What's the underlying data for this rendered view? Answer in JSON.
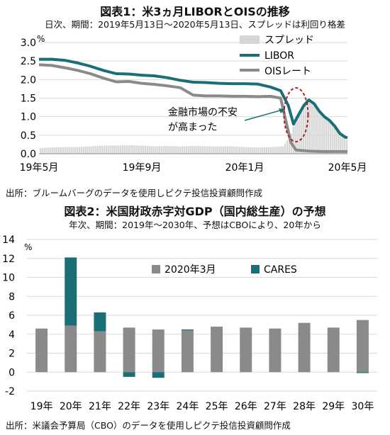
{
  "chart_data": [
    {
      "type": "line",
      "title": "図表1：米3ヵ月LIBORとOISの推移",
      "subtitle": "日次、期間：2019年5月13日～2020年5月13日、スプレッドは利回り格差",
      "source": "出所：ブルームバーグのデータを使用しピクテ投信投資顧問作成",
      "unit": "%",
      "ylim": [
        0.0,
        3.0
      ],
      "yticks": [
        "3.0",
        "2.5",
        "2.0",
        "1.5",
        "1.0",
        "0.5",
        "0.0"
      ],
      "xticks": [
        "19年5月",
        "19年9月",
        "20年1月",
        "20年5月"
      ],
      "xtick_positions": [
        0,
        4,
        8,
        12
      ],
      "xlim": [
        0,
        12
      ],
      "grid": true,
      "legend": "top-right",
      "annotation": [
        "金融市場の不安",
        "が高まった"
      ],
      "colors": {
        "spread": "#d6d6d6",
        "libor": "#1a6e76",
        "ois": "#8a8a8a",
        "annotation": "#1a6e76",
        "highlight": "#b01f24"
      },
      "series": [
        {
          "name": "スプレッド",
          "kind": "bar",
          "x": [
            0,
            0.5,
            1,
            1.5,
            2,
            2.5,
            3,
            3.5,
            4,
            4.5,
            5,
            5.5,
            6,
            6.5,
            7,
            7.5,
            8,
            8.5,
            9,
            9.5,
            9.8,
            10,
            10.3,
            10.6,
            10.8,
            11,
            11.3,
            11.6,
            11.8,
            12
          ],
          "values": [
            0.15,
            0.17,
            0.18,
            0.18,
            0.2,
            0.22,
            0.22,
            0.23,
            0.22,
            0.2,
            0.21,
            0.2,
            0.21,
            0.2,
            0.2,
            0.2,
            0.18,
            0.17,
            0.18,
            0.2,
            0.5,
            1.0,
            1.35,
            1.4,
            1.3,
            1.1,
            0.9,
            0.7,
            0.5,
            0.35
          ]
        },
        {
          "name": "LIBOR",
          "x": [
            0,
            0.5,
            1,
            1.5,
            2,
            2.5,
            3,
            3.5,
            4,
            4.5,
            5,
            5.5,
            6,
            6.5,
            7,
            7.5,
            8,
            8.5,
            9,
            9.4,
            9.7,
            9.9,
            10.1,
            10.3,
            10.5,
            10.7,
            10.9,
            11.1,
            11.3,
            11.5,
            11.7,
            11.9,
            12
          ],
          "values": [
            2.55,
            2.55,
            2.52,
            2.45,
            2.36,
            2.25,
            2.16,
            2.15,
            2.12,
            2.1,
            2.05,
            1.98,
            1.93,
            1.92,
            1.9,
            1.89,
            1.89,
            1.88,
            1.8,
            1.7,
            1.3,
            0.8,
            1.05,
            1.3,
            1.45,
            1.35,
            1.15,
            1.0,
            0.9,
            0.75,
            0.55,
            0.45,
            0.43
          ]
        },
        {
          "name": "OISレート",
          "x": [
            0,
            0.5,
            1,
            1.5,
            2,
            2.5,
            3,
            3.5,
            4,
            4.5,
            5,
            5.5,
            6,
            6.5,
            7,
            7.5,
            8,
            8.5,
            9,
            9.4,
            9.6,
            9.8,
            10.0,
            10.5,
            11,
            11.5,
            12
          ],
          "values": [
            2.4,
            2.38,
            2.32,
            2.25,
            2.16,
            2.04,
            1.94,
            1.95,
            1.9,
            1.87,
            1.83,
            1.78,
            1.58,
            1.56,
            1.56,
            1.55,
            1.55,
            1.54,
            1.55,
            1.5,
            0.9,
            0.3,
            0.1,
            0.07,
            0.06,
            0.06,
            0.06
          ]
        }
      ]
    },
    {
      "type": "bar",
      "title": "図表2：米国財政赤字対GDP（国内総生産）の予想",
      "subtitle": "年次、期間：2019年～2030年、予想はCBOにより、20年から",
      "source": "出所：米議会予算局（CBO）のデータを使用しピクテ投信投資顧問作成",
      "unit": "%",
      "ylim": [
        -2,
        14
      ],
      "yticks": [
        "14",
        "12",
        "10",
        "8",
        "6",
        "4",
        "2",
        "0",
        "-2"
      ],
      "categories": [
        "19年",
        "20年",
        "21年",
        "22年",
        "23年",
        "24年",
        "25年",
        "26年",
        "27年",
        "28年",
        "29年",
        "30年"
      ],
      "grid": true,
      "legend": "top-center",
      "colors": {
        "base": "#8a8a8a",
        "cares": "#1a6e76"
      },
      "series": [
        {
          "name": "2020年3月",
          "values": [
            4.6,
            4.9,
            4.3,
            4.7,
            4.5,
            4.4,
            4.8,
            4.7,
            4.6,
            5.2,
            4.7,
            5.5
          ]
        },
        {
          "name": "CARES",
          "values": [
            0,
            7.2,
            2.0,
            -0.5,
            -0.6,
            0.1,
            0,
            0,
            0,
            0,
            0,
            -0.1
          ]
        }
      ]
    }
  ]
}
